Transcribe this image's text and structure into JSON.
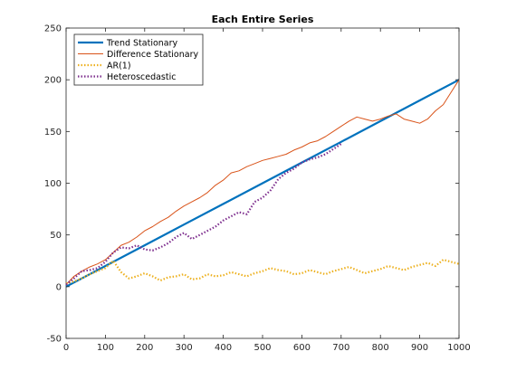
{
  "chart_data": {
    "type": "line",
    "title": "Each Entire Series",
    "xlabel": "",
    "ylabel": "",
    "xlim": [
      0,
      1000
    ],
    "ylim": [
      -50,
      250
    ],
    "xticks": [
      0,
      100,
      200,
      300,
      400,
      500,
      600,
      700,
      800,
      900,
      1000
    ],
    "yticks": [
      -50,
      0,
      50,
      100,
      150,
      200,
      250
    ],
    "grid": false,
    "legend_position": "top-left",
    "series": [
      {
        "name": "Trend Stationary",
        "color": "#0072BD",
        "style": "solid-thick",
        "x": [
          0,
          100,
          200,
          300,
          400,
          500,
          600,
          700,
          800,
          900,
          1000
        ],
        "y": [
          0,
          20,
          40,
          60,
          80,
          100,
          120,
          140,
          160,
          180,
          200
        ]
      },
      {
        "name": "Difference Stationary",
        "color": "#D95319",
        "style": "solid-thin",
        "x": [
          0,
          20,
          40,
          60,
          80,
          100,
          120,
          140,
          160,
          180,
          200,
          220,
          240,
          260,
          280,
          300,
          320,
          340,
          360,
          380,
          400,
          420,
          440,
          460,
          480,
          500,
          520,
          540,
          560,
          580,
          600,
          620,
          640,
          660,
          680,
          700,
          720,
          740,
          760,
          780,
          800,
          820,
          840,
          860,
          880,
          900,
          920,
          940,
          960,
          980,
          1000
        ],
        "y": [
          2,
          10,
          15,
          19,
          22,
          26,
          33,
          40,
          43,
          48,
          54,
          58,
          63,
          67,
          73,
          78,
          82,
          86,
          91,
          98,
          103,
          110,
          112,
          116,
          119,
          122,
          124,
          126,
          128,
          132,
          135,
          139,
          141,
          145,
          150,
          155,
          160,
          164,
          162,
          160,
          162,
          165,
          167,
          162,
          160,
          158,
          162,
          170,
          176,
          188,
          200
        ]
      },
      {
        "name": "AR(1)",
        "color": "#EDB120",
        "style": "dotted",
        "x": [
          0,
          20,
          40,
          60,
          80,
          100,
          120,
          140,
          160,
          180,
          200,
          220,
          240,
          260,
          280,
          300,
          320,
          340,
          360,
          380,
          400,
          420,
          440,
          460,
          480,
          500,
          520,
          540,
          560,
          580,
          600,
          620,
          640,
          660,
          680,
          700,
          720,
          740,
          760,
          780,
          800,
          820,
          840,
          860,
          880,
          900,
          920,
          940,
          960,
          980,
          1000
        ],
        "y": [
          3,
          5,
          8,
          12,
          15,
          18,
          25,
          14,
          8,
          10,
          13,
          10,
          6,
          9,
          10,
          12,
          7,
          8,
          12,
          10,
          11,
          14,
          12,
          10,
          13,
          15,
          18,
          16,
          15,
          12,
          13,
          16,
          14,
          12,
          15,
          17,
          19,
          16,
          13,
          15,
          17,
          20,
          18,
          16,
          19,
          21,
          23,
          20,
          26,
          24,
          22
        ]
      },
      {
        "name": "Heteroscedastic",
        "color": "#7E2F8E",
        "style": "dotted",
        "x": [
          0,
          20,
          40,
          60,
          80,
          100,
          120,
          140,
          160,
          180,
          200,
          220,
          240,
          260,
          280,
          300,
          320,
          340,
          360,
          380,
          400,
          420,
          440,
          460,
          480,
          500,
          520,
          540,
          560,
          580,
          600,
          620,
          640,
          660,
          680,
          700
        ],
        "y": [
          2,
          8,
          15,
          16,
          18,
          24,
          33,
          38,
          37,
          40,
          36,
          35,
          38,
          42,
          48,
          52,
          46,
          50,
          54,
          58,
          64,
          68,
          72,
          70,
          82,
          86,
          93,
          104,
          110,
          114,
          120,
          123,
          125,
          128,
          133,
          138
        ]
      }
    ]
  }
}
